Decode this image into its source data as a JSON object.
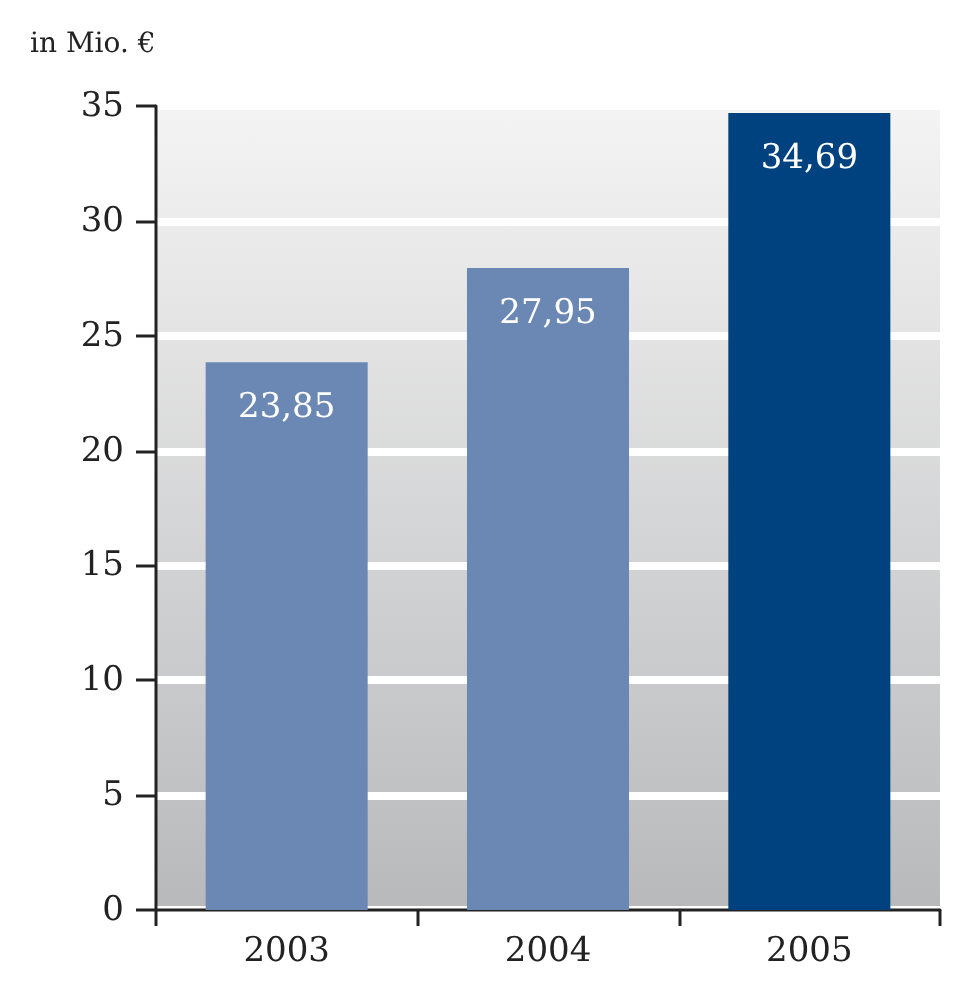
{
  "chart_data": {
    "type": "bar",
    "ylabel": "in Mio. €",
    "categories": [
      "2003",
      "2004",
      "2005"
    ],
    "values": [
      23.85,
      27.95,
      34.69
    ],
    "colors": [
      "#6b88b5",
      "#6b88b5",
      "#00427f"
    ],
    "value_labels": [
      "23,85",
      "27,95",
      "34,69"
    ],
    "ylim": [
      0,
      35
    ],
    "yticks": [
      0,
      5,
      10,
      15,
      20,
      25,
      30,
      35
    ],
    "grid": "y"
  }
}
